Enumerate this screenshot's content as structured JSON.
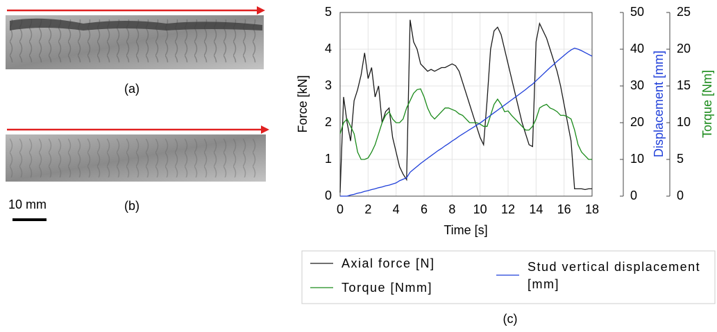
{
  "photos": {
    "a_label": "(a)",
    "b_label": "(b)",
    "scale_label": "10 mm"
  },
  "chart_data": {
    "type": "line",
    "caption": "(c)",
    "x_label": "Time [s]",
    "y_label": "Force [kN]",
    "y2_label": "Displacement [mm]",
    "y3_label": "Torque [Nm]",
    "xlim": [
      0,
      18
    ],
    "xticks": [
      0,
      2,
      4,
      6,
      8,
      10,
      12,
      14,
      16,
      18
    ],
    "ylim": [
      0,
      5
    ],
    "yticks": [
      0,
      1,
      2,
      3,
      4,
      5
    ],
    "y2lim": [
      0,
      50
    ],
    "y2ticks": [
      0,
      10,
      20,
      30,
      40,
      50
    ],
    "y3lim": [
      0,
      25
    ],
    "y3ticks": [
      0,
      5,
      10,
      15,
      20,
      25
    ],
    "grid": true,
    "legend": "bottom",
    "x": [
      0,
      0.25,
      0.5,
      0.75,
      1,
      1.25,
      1.5,
      1.75,
      2,
      2.25,
      2.5,
      2.75,
      3,
      3.25,
      3.5,
      3.75,
      4,
      4.25,
      4.5,
      4.75,
      5,
      5.25,
      5.5,
      5.75,
      6,
      6.25,
      6.5,
      6.75,
      7,
      7.25,
      7.5,
      7.75,
      8,
      8.25,
      8.5,
      8.75,
      9,
      9.25,
      9.5,
      9.75,
      10,
      10.25,
      10.5,
      10.75,
      11,
      11.25,
      11.5,
      11.75,
      12,
      12.25,
      12.5,
      12.75,
      13,
      13.25,
      13.5,
      13.75,
      14,
      14.25,
      14.5,
      14.75,
      15,
      15.25,
      15.5,
      15.75,
      16,
      16.25,
      16.5,
      16.75,
      17,
      17.25,
      17.5,
      17.75,
      18
    ],
    "series": [
      {
        "name": "Axial force [N]",
        "color": "#1a1a1a",
        "axis": "y",
        "values": [
          0.1,
          2.7,
          2.0,
          1.5,
          2.6,
          2.9,
          3.3,
          3.9,
          3.2,
          3.5,
          2.7,
          3.0,
          2.0,
          2.3,
          2.4,
          1.6,
          1.2,
          0.8,
          0.6,
          0.45,
          4.8,
          4.2,
          4.0,
          3.6,
          3.5,
          3.4,
          3.45,
          3.4,
          3.45,
          3.5,
          3.5,
          3.55,
          3.6,
          3.55,
          3.4,
          3.1,
          2.8,
          2.5,
          2.2,
          1.9,
          1.6,
          1.4,
          2.6,
          4.0,
          4.5,
          4.6,
          4.4,
          4.0,
          3.6,
          3.2,
          2.8,
          2.4,
          2.0,
          1.7,
          1.4,
          1.35,
          4.2,
          4.7,
          4.5,
          4.3,
          4.0,
          3.7,
          3.4,
          3.0,
          2.5,
          2.0,
          1.5,
          0.2,
          0.2,
          0.2,
          0.18,
          0.2,
          0.2
        ]
      },
      {
        "name": "Torque [Nmm]",
        "color": "#1a8a1a",
        "axis": "y3",
        "values": [
          8.5,
          10,
          10.5,
          9.5,
          8.5,
          6,
          5,
          5,
          5.2,
          6,
          7,
          8.5,
          10,
          11,
          11.5,
          10.5,
          10,
          10,
          10.5,
          12,
          13,
          14,
          14.5,
          14.6,
          13.5,
          12,
          11,
          10.5,
          11,
          11.5,
          12,
          12,
          11.8,
          11.6,
          11.2,
          11,
          10.5,
          10,
          10,
          10,
          9.8,
          9.5,
          9.5,
          11,
          12.5,
          13.2,
          12.5,
          11.5,
          11.6,
          11,
          10.5,
          10,
          9.5,
          9,
          9,
          9.5,
          10.5,
          12,
          12.3,
          12.5,
          12,
          11.8,
          11.5,
          11,
          11,
          10.8,
          10.5,
          9,
          7,
          6,
          5.5,
          5,
          5
        ]
      },
      {
        "name": "Stud vertical displacement [mm]",
        "color": "#1f3fd9",
        "axis": "y2",
        "values": [
          0,
          0,
          0,
          0.3,
          0.5,
          0.8,
          1.0,
          1.3,
          1.5,
          1.8,
          2.0,
          2.3,
          2.5,
          2.8,
          3.0,
          3.3,
          3.6,
          4.2,
          4.6,
          5.0,
          6.5,
          7.3,
          8.1,
          8.9,
          9.6,
          10.3,
          11.0,
          11.7,
          12.4,
          13.0,
          13.7,
          14.3,
          15.0,
          15.6,
          16.3,
          16.9,
          17.5,
          18.1,
          18.7,
          19.3,
          19.9,
          20.6,
          21.3,
          22.0,
          22.7,
          23.4,
          24.1,
          24.8,
          25.5,
          26.2,
          26.9,
          27.6,
          28.3,
          29.0,
          29.8,
          30.5,
          31.4,
          32.3,
          33.2,
          34.1,
          35.0,
          35.8,
          36.7,
          37.5,
          38.3,
          39.1,
          39.8,
          40.3,
          40.0,
          39.6,
          39.1,
          38.6,
          38.1
        ]
      }
    ]
  }
}
